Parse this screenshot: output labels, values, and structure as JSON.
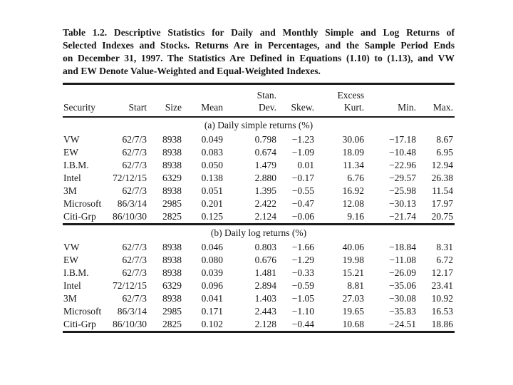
{
  "caption": {
    "lines": [
      "Table 1.2. Descriptive Statistics for Daily and Monthly Simple and Log Returns of",
      "Selected Indexes and Stocks. Returns Are in Percentages, and the Sample Period Ends",
      "on December 31, 1997. The Statistics Are Defined in Equations (1.10) to (1.13), and VW",
      "and EW Denote Value-Weighted and Equal-Weighted Indexes."
    ]
  },
  "table": {
    "columns": [
      {
        "id": "security",
        "top": "",
        "label": "Security"
      },
      {
        "id": "start",
        "top": "",
        "label": "Start"
      },
      {
        "id": "size",
        "top": "",
        "label": "Size"
      },
      {
        "id": "mean",
        "top": "",
        "label": "Mean"
      },
      {
        "id": "std",
        "top": "Stan.",
        "label": "Dev."
      },
      {
        "id": "skew",
        "top": "",
        "label": "Skew."
      },
      {
        "id": "kurt",
        "top": "Excess",
        "label": "Kurt."
      },
      {
        "id": "min",
        "top": "",
        "label": "Min."
      },
      {
        "id": "max",
        "top": "",
        "label": "Max."
      }
    ],
    "sections": [
      {
        "label": "(a) Daily simple returns (%)",
        "rows": [
          {
            "security": "VW",
            "start": "62/7/3",
            "size": "8938",
            "mean": "0.049",
            "std": "0.798",
            "skew": "−1.23",
            "kurt": "30.06",
            "min": "−17.18",
            "max": "8.67"
          },
          {
            "security": "EW",
            "start": "62/7/3",
            "size": "8938",
            "mean": "0.083",
            "std": "0.674",
            "skew": "−1.09",
            "kurt": "18.09",
            "min": "−10.48",
            "max": "6.95"
          },
          {
            "security": "I.B.M.",
            "start": "62/7/3",
            "size": "8938",
            "mean": "0.050",
            "std": "1.479",
            "skew": "0.01",
            "kurt": "11.34",
            "min": "−22.96",
            "max": "12.94"
          },
          {
            "security": "Intel",
            "start": "72/12/15",
            "size": "6329",
            "mean": "0.138",
            "std": "2.880",
            "skew": "−0.17",
            "kurt": "6.76",
            "min": "−29.57",
            "max": "26.38"
          },
          {
            "security": "3M",
            "start": "62/7/3",
            "size": "8938",
            "mean": "0.051",
            "std": "1.395",
            "skew": "−0.55",
            "kurt": "16.92",
            "min": "−25.98",
            "max": "11.54"
          },
          {
            "security": "Microsoft",
            "start": "86/3/14",
            "size": "2985",
            "mean": "0.201",
            "std": "2.422",
            "skew": "−0.47",
            "kurt": "12.08",
            "min": "−30.13",
            "max": "17.97"
          },
          {
            "security": "Citi-Grp",
            "start": "86/10/30",
            "size": "2825",
            "mean": "0.125",
            "std": "2.124",
            "skew": "−0.06",
            "kurt": "9.16",
            "min": "−21.74",
            "max": "20.75"
          }
        ]
      },
      {
        "label": "(b) Daily log returns (%)",
        "rows": [
          {
            "security": "VW",
            "start": "62/7/3",
            "size": "8938",
            "mean": "0.046",
            "std": "0.803",
            "skew": "−1.66",
            "kurt": "40.06",
            "min": "−18.84",
            "max": "8.31"
          },
          {
            "security": "EW",
            "start": "62/7/3",
            "size": "8938",
            "mean": "0.080",
            "std": "0.676",
            "skew": "−1.29",
            "kurt": "19.98",
            "min": "−11.08",
            "max": "6.72"
          },
          {
            "security": "I.B.M.",
            "start": "62/7/3",
            "size": "8938",
            "mean": "0.039",
            "std": "1.481",
            "skew": "−0.33",
            "kurt": "15.21",
            "min": "−26.09",
            "max": "12.17"
          },
          {
            "security": "Intel",
            "start": "72/12/15",
            "size": "6329",
            "mean": "0.096",
            "std": "2.894",
            "skew": "−0.59",
            "kurt": "8.81",
            "min": "−35.06",
            "max": "23.41"
          },
          {
            "security": "3M",
            "start": "62/7/3",
            "size": "8938",
            "mean": "0.041",
            "std": "1.403",
            "skew": "−1.05",
            "kurt": "27.03",
            "min": "−30.08",
            "max": "10.92"
          },
          {
            "security": "Microsoft",
            "start": "86/3/14",
            "size": "2985",
            "mean": "0.171",
            "std": "2.443",
            "skew": "−1.10",
            "kurt": "19.65",
            "min": "−35.83",
            "max": "16.53"
          },
          {
            "security": "Citi-Grp",
            "start": "86/10/30",
            "size": "2825",
            "mean": "0.102",
            "std": "2.128",
            "skew": "−0.44",
            "kurt": "10.68",
            "min": "−24.51",
            "max": "18.86"
          }
        ]
      }
    ]
  }
}
